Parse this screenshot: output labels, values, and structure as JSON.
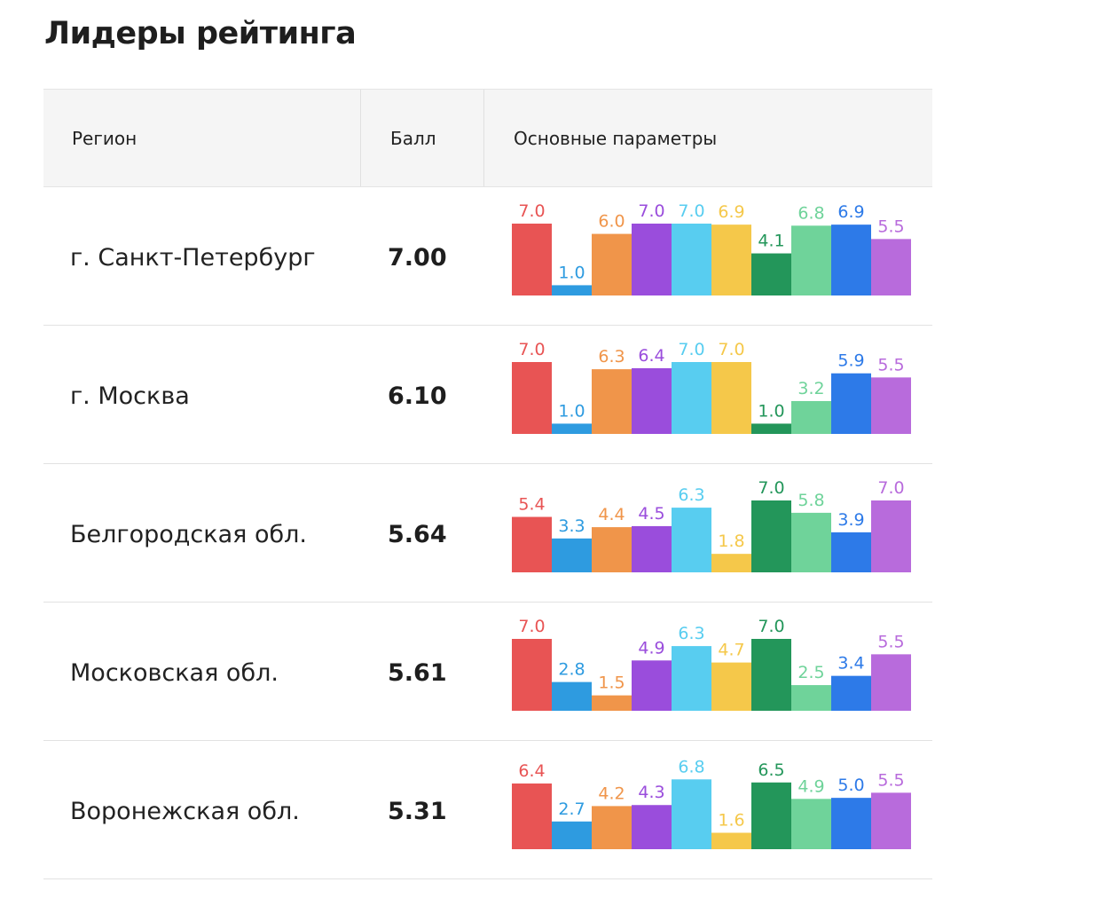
{
  "title": "Лидеры рейтинга",
  "header": {
    "region": "Регион",
    "score": "Балл",
    "params": "Основные параметры"
  },
  "colors": [
    "#e85454",
    "#2e9be0",
    "#f0954a",
    "#9a4ddc",
    "#58cdf0",
    "#f5c84a",
    "#23965a",
    "#6fd39a",
    "#2d7ae8",
    "#b86bdc"
  ],
  "label_colors": [
    "#e85454",
    "#2e9be0",
    "#f0954a",
    "#9a4ddc",
    "#58cdf0",
    "#f5c84a",
    "#23965a",
    "#6fd39a",
    "#2d7ae8",
    "#b86bdc"
  ],
  "chart_data": {
    "type": "bar",
    "ylim": [
      0,
      7
    ],
    "rows": [
      {
        "region": "г. Санкт-Петербург",
        "score": "7.00",
        "values": [
          7.0,
          1.0,
          6.0,
          7.0,
          7.0,
          6.9,
          4.1,
          6.8,
          6.9,
          5.5
        ]
      },
      {
        "region": "г. Москва",
        "score": "6.10",
        "values": [
          7.0,
          1.0,
          6.3,
          6.4,
          7.0,
          7.0,
          1.0,
          3.2,
          5.9,
          5.5
        ]
      },
      {
        "region": "Белгородская обл.",
        "score": "5.64",
        "values": [
          5.4,
          3.3,
          4.4,
          4.5,
          6.3,
          1.8,
          7.0,
          5.8,
          3.9,
          7.0
        ]
      },
      {
        "region": "Московская обл.",
        "score": "5.61",
        "values": [
          7.0,
          2.8,
          1.5,
          4.9,
          6.3,
          4.7,
          7.0,
          2.5,
          3.4,
          5.5
        ]
      },
      {
        "region": "Воронежская обл.",
        "score": "5.31",
        "values": [
          6.4,
          2.7,
          4.2,
          4.3,
          6.8,
          1.6,
          6.5,
          4.9,
          5.0,
          5.5
        ]
      }
    ]
  }
}
